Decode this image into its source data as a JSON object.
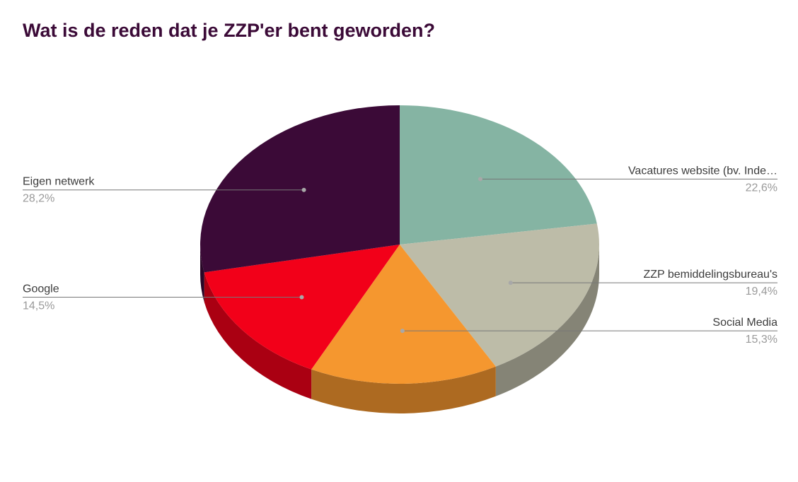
{
  "chart_data": {
    "type": "pie",
    "title": "Wat is de reden dat je ZZP'er bent geworden?",
    "three_d": true,
    "slices": [
      {
        "label": "Vacatures website (bv. Inde…",
        "value": 22.6,
        "value_label": "22,6%",
        "color": "#85b4a3",
        "side_color": "#6a9082",
        "label_side": "right"
      },
      {
        "label": "ZZP bemiddelingsbureau's",
        "value": 19.4,
        "value_label": "19,4%",
        "color": "#bdbca8",
        "side_color": "#858476",
        "label_side": "right"
      },
      {
        "label": "Social Media",
        "value": 15.3,
        "value_label": "15,3%",
        "color": "#f5972f",
        "side_color": "#ad6a21",
        "label_side": "right"
      },
      {
        "label": "Google",
        "value": 14.5,
        "value_label": "14,5%",
        "color": "#f20019",
        "side_color": "#aa0012",
        "label_side": "left"
      },
      {
        "label": "Eigen netwerk",
        "value": 28.2,
        "value_label": "28,2%",
        "color": "#3b0a37",
        "side_color": "#290727",
        "label_side": "left"
      }
    ]
  }
}
